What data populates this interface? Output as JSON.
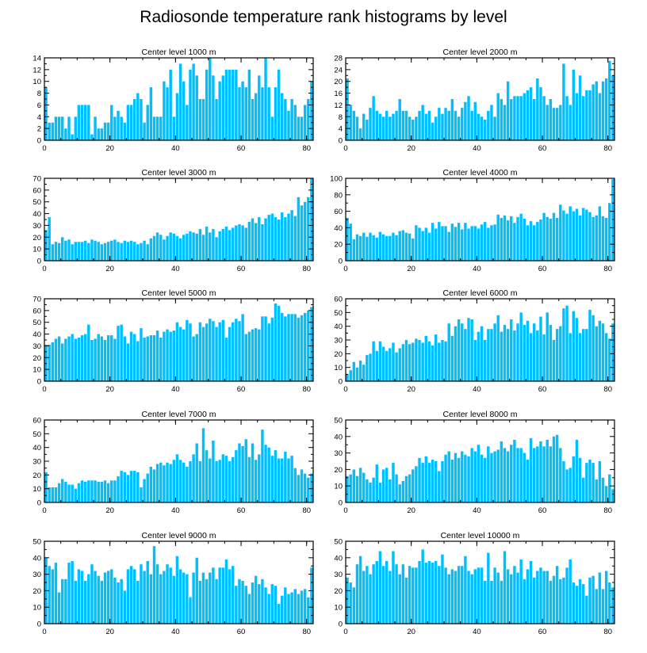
{
  "title": "Radiosonde temperature rank histograms by level",
  "colors": {
    "bar": "#00bfff",
    "axis": "#000000"
  },
  "chart_data": [
    {
      "type": "bar",
      "title": "Center level 1000 m",
      "xlim": [
        0,
        82
      ],
      "ylim": [
        0,
        14
      ],
      "xticks": [
        0,
        20,
        40,
        60,
        80
      ],
      "yticks": [
        0,
        2,
        4,
        6,
        8,
        10,
        12,
        14
      ],
      "values": [
        9,
        3,
        3,
        4,
        4,
        4,
        2,
        4,
        1,
        4,
        6,
        6,
        6,
        6,
        1,
        4,
        2,
        2,
        3,
        3,
        6,
        4,
        5,
        4,
        3,
        6,
        6,
        7,
        8,
        7,
        3,
        6,
        9,
        4,
        4,
        4,
        10,
        9,
        12,
        4,
        8,
        13,
        10,
        6,
        12,
        13,
        11,
        7,
        7,
        12,
        14,
        11,
        7,
        10,
        11,
        12,
        12,
        12,
        12,
        9,
        10,
        9,
        12,
        7,
        8,
        11,
        9,
        14,
        9,
        4,
        9,
        12,
        8,
        7,
        5,
        7,
        6,
        4,
        4,
        6,
        7,
        10
      ]
    },
    {
      "type": "bar",
      "title": "Center level 2000 m",
      "xlim": [
        0,
        82
      ],
      "ylim": [
        0,
        28
      ],
      "xticks": [
        0,
        20,
        40,
        60,
        80
      ],
      "yticks": [
        0,
        4,
        8,
        12,
        16,
        20,
        24,
        28
      ],
      "values": [
        21,
        12,
        10,
        8,
        4,
        9,
        7,
        11,
        15,
        10,
        9,
        8,
        10,
        8,
        9,
        10,
        14,
        10,
        10,
        8,
        7,
        8,
        10,
        12,
        9,
        10,
        6,
        8,
        11,
        9,
        11,
        10,
        14,
        10,
        8,
        11,
        13,
        15,
        10,
        13,
        9,
        8,
        7,
        10,
        12,
        8,
        16,
        14,
        12,
        20,
        14,
        15,
        15,
        15,
        16,
        17,
        18,
        14,
        21,
        18,
        15,
        12,
        14,
        11,
        11,
        12,
        26,
        15,
        12,
        24,
        16,
        22,
        15,
        17,
        17,
        19,
        20,
        16,
        20,
        21,
        27,
        22
      ]
    },
    {
      "type": "bar",
      "title": "Center level 3000 m",
      "xlim": [
        0,
        82
      ],
      "ylim": [
        0,
        70
      ],
      "xticks": [
        0,
        20,
        40,
        60,
        80
      ],
      "yticks": [
        0,
        10,
        20,
        30,
        40,
        50,
        60,
        70
      ],
      "values": [
        26,
        37,
        14,
        16,
        15,
        20,
        17,
        18,
        14,
        16,
        16,
        16,
        17,
        15,
        18,
        17,
        16,
        14,
        15,
        16,
        17,
        18,
        16,
        15,
        17,
        16,
        17,
        16,
        14,
        15,
        17,
        14,
        19,
        21,
        24,
        22,
        18,
        21,
        24,
        23,
        21,
        19,
        22,
        23,
        25,
        24,
        23,
        27,
        22,
        29,
        24,
        27,
        20,
        25,
        27,
        29,
        26,
        28,
        30,
        31,
        30,
        28,
        33,
        36,
        32,
        37,
        31,
        36,
        39,
        40,
        37,
        35,
        41,
        37,
        40,
        43,
        38,
        54,
        47,
        50,
        54,
        70
      ]
    },
    {
      "type": "bar",
      "title": "Center level 4000 m",
      "xlim": [
        0,
        82
      ],
      "ylim": [
        0,
        100
      ],
      "xticks": [
        0,
        20,
        40,
        60,
        80
      ],
      "yticks": [
        0,
        20,
        40,
        60,
        80,
        100
      ],
      "values": [
        52,
        45,
        26,
        32,
        30,
        34,
        29,
        34,
        31,
        28,
        35,
        32,
        30,
        30,
        34,
        31,
        36,
        37,
        34,
        33,
        27,
        43,
        40,
        36,
        40,
        34,
        46,
        39,
        47,
        42,
        42,
        35,
        45,
        41,
        46,
        38,
        46,
        39,
        42,
        42,
        39,
        44,
        47,
        40,
        43,
        44,
        56,
        52,
        55,
        49,
        54,
        46,
        53,
        57,
        51,
        43,
        48,
        43,
        47,
        50,
        58,
        53,
        51,
        58,
        52,
        68,
        61,
        57,
        66,
        60,
        63,
        55,
        64,
        62,
        59,
        53,
        55,
        66,
        54,
        52,
        70,
        99
      ]
    },
    {
      "type": "bar",
      "title": "Center level 5000 m",
      "xlim": [
        0,
        82
      ],
      "ylim": [
        0,
        70
      ],
      "xticks": [
        0,
        20,
        40,
        60,
        80
      ],
      "yticks": [
        0,
        10,
        20,
        30,
        40,
        50,
        60,
        70
      ],
      "values": [
        31,
        31,
        33,
        36,
        38,
        32,
        36,
        38,
        40,
        36,
        37,
        39,
        40,
        48,
        35,
        36,
        40,
        38,
        35,
        39,
        39,
        36,
        47,
        48,
        38,
        32,
        42,
        40,
        34,
        45,
        37,
        38,
        39,
        39,
        43,
        37,
        42,
        44,
        42,
        43,
        50,
        46,
        44,
        52,
        49,
        38,
        40,
        50,
        46,
        49,
        53,
        51,
        46,
        50,
        52,
        37,
        46,
        50,
        53,
        51,
        57,
        40,
        42,
        44,
        45,
        44,
        55,
        55,
        49,
        54,
        66,
        64,
        58,
        55,
        57,
        57,
        57,
        54,
        56,
        58,
        60,
        63
      ]
    },
    {
      "type": "bar",
      "title": "Center level 6000 m",
      "xlim": [
        0,
        82
      ],
      "ylim": [
        0,
        60
      ],
      "xticks": [
        0,
        20,
        40,
        60,
        80
      ],
      "yticks": [
        0,
        10,
        20,
        30,
        40,
        50,
        60
      ],
      "values": [
        5,
        8,
        14,
        10,
        15,
        12,
        19,
        20,
        29,
        22,
        29,
        25,
        22,
        24,
        28,
        21,
        24,
        27,
        30,
        27,
        28,
        31,
        30,
        28,
        33,
        29,
        26,
        34,
        28,
        30,
        29,
        42,
        33,
        40,
        45,
        42,
        38,
        46,
        45,
        30,
        36,
        40,
        30,
        38,
        38,
        42,
        48,
        36,
        41,
        38,
        45,
        37,
        42,
        50,
        41,
        44,
        35,
        42,
        37,
        47,
        34,
        50,
        41,
        30,
        38,
        40,
        53,
        55,
        35,
        51,
        46,
        35,
        38,
        38,
        52,
        48,
        40,
        44,
        42,
        35,
        31,
        42
      ]
    },
    {
      "type": "bar",
      "title": "Center level 7000 m",
      "xlim": [
        0,
        82
      ],
      "ylim": [
        0,
        60
      ],
      "xticks": [
        0,
        20,
        40,
        60,
        80
      ],
      "yticks": [
        0,
        10,
        20,
        30,
        40,
        50,
        60
      ],
      "values": [
        22,
        11,
        11,
        11,
        14,
        17,
        15,
        13,
        13,
        10,
        14,
        16,
        15,
        16,
        16,
        16,
        15,
        15,
        16,
        14,
        16,
        16,
        19,
        23,
        22,
        20,
        23,
        23,
        22,
        11,
        17,
        21,
        26,
        24,
        28,
        29,
        27,
        29,
        28,
        31,
        35,
        31,
        29,
        26,
        30,
        35,
        43,
        30,
        54,
        38,
        32,
        45,
        30,
        31,
        35,
        34,
        30,
        33,
        38,
        43,
        41,
        46,
        33,
        43,
        31,
        35,
        53,
        42,
        40,
        34,
        38,
        32,
        32,
        37,
        32,
        34,
        25,
        20,
        24,
        21,
        18,
        21
      ]
    },
    {
      "type": "bar",
      "title": "Center level 8000 m",
      "xlim": [
        0,
        82
      ],
      "ylim": [
        0,
        50
      ],
      "xticks": [
        0,
        20,
        40,
        60,
        80
      ],
      "yticks": [
        0,
        10,
        20,
        30,
        40,
        50
      ],
      "values": [
        16,
        17,
        20,
        16,
        21,
        18,
        14,
        12,
        15,
        23,
        12,
        20,
        21,
        14,
        24,
        17,
        11,
        13,
        16,
        17,
        20,
        22,
        27,
        24,
        28,
        24,
        26,
        25,
        19,
        25,
        29,
        31,
        26,
        30,
        27,
        31,
        29,
        28,
        33,
        31,
        35,
        29,
        27,
        34,
        30,
        31,
        32,
        37,
        33,
        31,
        35,
        38,
        33,
        33,
        30,
        26,
        39,
        33,
        34,
        37,
        34,
        38,
        34,
        40,
        41,
        33,
        25,
        20,
        21,
        28,
        38,
        27,
        15,
        24,
        26,
        24,
        14,
        25,
        15,
        10,
        17,
        8
      ]
    },
    {
      "type": "bar",
      "title": "Center level 9000 m",
      "xlim": [
        0,
        82
      ],
      "ylim": [
        0,
        50
      ],
      "xticks": [
        0,
        20,
        40,
        60,
        80
      ],
      "yticks": [
        0,
        10,
        20,
        30,
        40,
        50
      ],
      "values": [
        40,
        35,
        33,
        37,
        19,
        27,
        27,
        37,
        38,
        26,
        33,
        32,
        26,
        30,
        36,
        32,
        29,
        26,
        31,
        32,
        33,
        28,
        25,
        27,
        20,
        33,
        35,
        33,
        26,
        36,
        32,
        38,
        30,
        47,
        36,
        30,
        32,
        36,
        34,
        29,
        41,
        33,
        31,
        30,
        16,
        31,
        40,
        26,
        31,
        27,
        31,
        34,
        27,
        34,
        34,
        39,
        33,
        35,
        23,
        27,
        26,
        23,
        18,
        25,
        29,
        24,
        27,
        22,
        18,
        24,
        23,
        12,
        17,
        22,
        18,
        19,
        21,
        18,
        20,
        21,
        16,
        34
      ]
    },
    {
      "type": "bar",
      "title": "Center level 10000 m",
      "xlim": [
        0,
        82
      ],
      "ylim": [
        0,
        50
      ],
      "xticks": [
        0,
        20,
        40,
        60,
        80
      ],
      "yticks": [
        0,
        10,
        20,
        30,
        40,
        50
      ],
      "values": [
        28,
        25,
        22,
        36,
        41,
        32,
        35,
        30,
        36,
        38,
        44,
        35,
        38,
        32,
        44,
        36,
        30,
        36,
        28,
        35,
        34,
        34,
        38,
        45,
        37,
        38,
        37,
        38,
        35,
        42,
        34,
        30,
        33,
        32,
        35,
        35,
        41,
        32,
        30,
        33,
        34,
        34,
        26,
        43,
        26,
        34,
        31,
        26,
        44,
        33,
        30,
        35,
        31,
        39,
        27,
        33,
        38,
        28,
        32,
        34,
        32,
        32,
        26,
        29,
        35,
        27,
        28,
        34,
        39,
        25,
        23,
        27,
        24,
        17,
        28,
        29,
        21,
        31,
        21,
        32,
        25,
        22
      ]
    }
  ]
}
